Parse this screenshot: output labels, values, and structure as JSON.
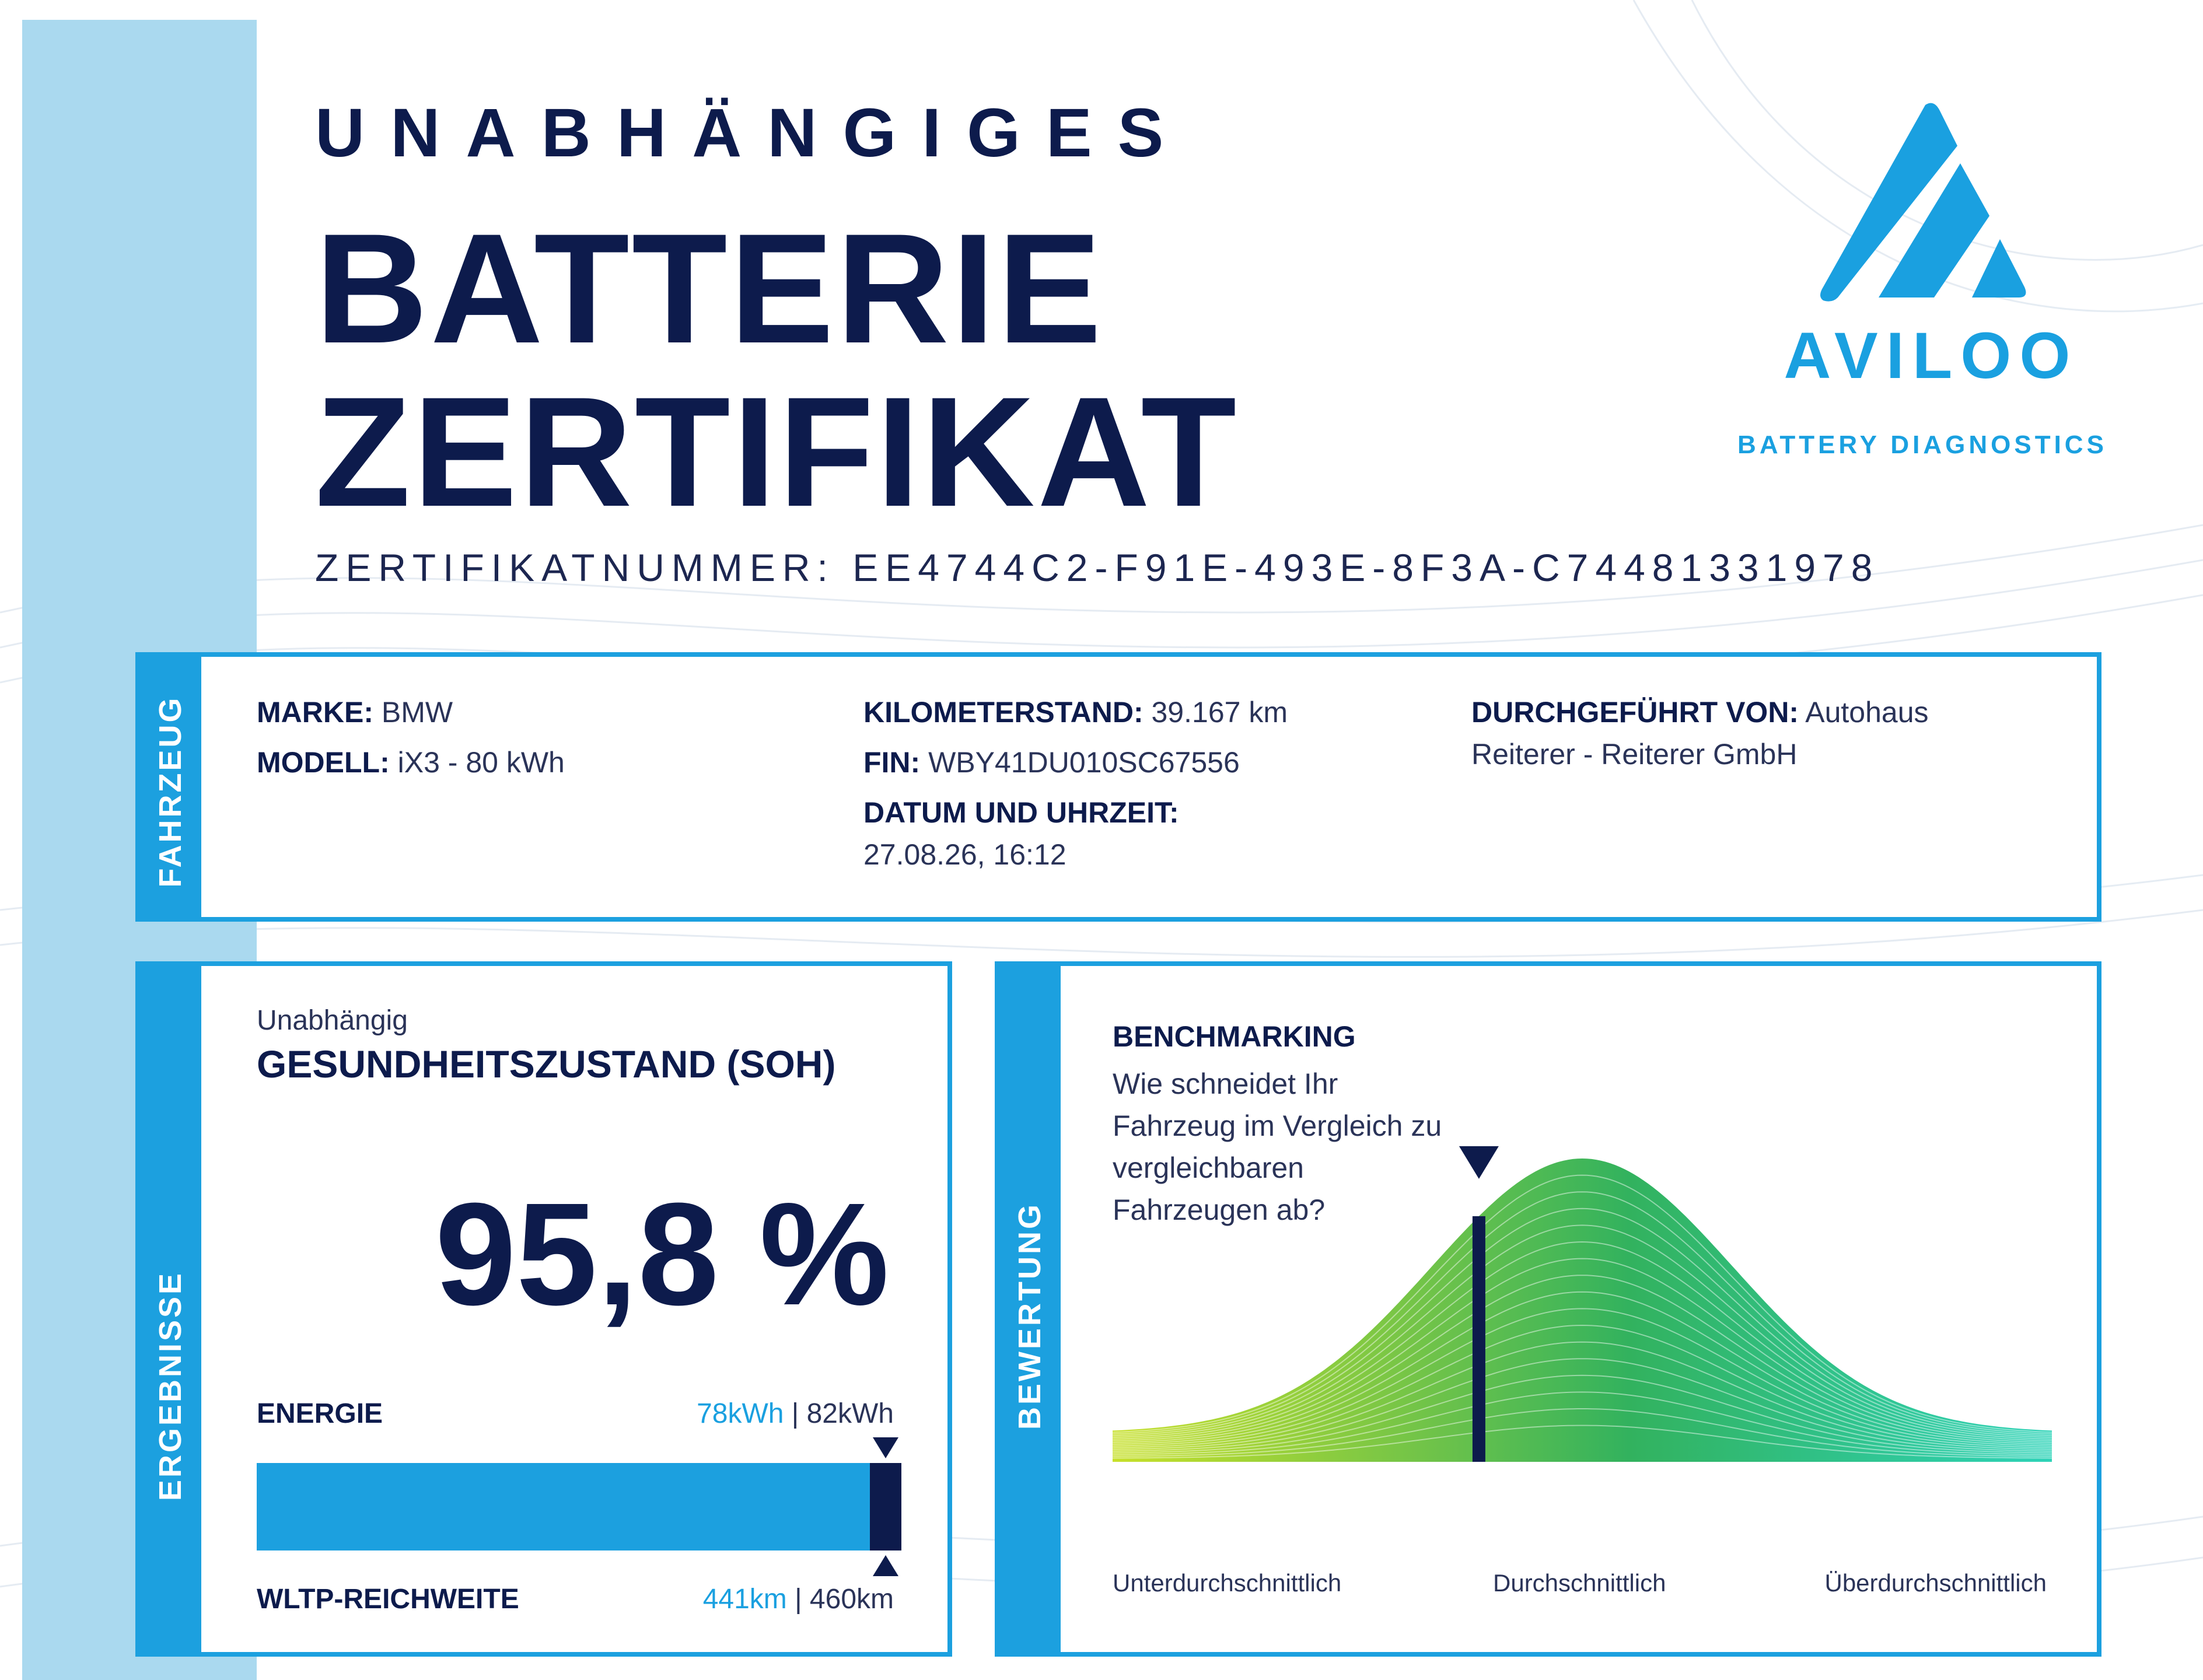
{
  "header": {
    "kicker": "UNABHÄNGIGES",
    "title_line1": "BATTERIE",
    "title_line2": "ZERTIFIKAT",
    "certificate_number": "ZERTIFIKATNUMMER: EE4744C2-F91E-493E-8F3A-C74481331978"
  },
  "logo": {
    "brand": "AVILOO",
    "tagline": "BATTERY DIAGNOSTICS",
    "color": "#1aa0e0"
  },
  "vehicle": {
    "tab_label": "FAHRZEUG",
    "make_label": "MARKE:",
    "make_value": "BMW",
    "model_label": "MODELL:",
    "model_value": "iX3 - 80 kWh",
    "mileage_label": "KILOMETERSTAND:",
    "mileage_value": "39.167 km",
    "vin_label": "FIN:",
    "vin_value": "WBY41DU010SC67556",
    "date_label": "DATUM UND UHRZEIT:",
    "date_value": "27.08.26, 16:12",
    "performed_by_label": "DURCHGEFÜHRT VON:",
    "performed_by_value_line1": "Autohaus",
    "performed_by_value_line2": "Reiterer - Reiterer GmbH"
  },
  "results": {
    "tab_label": "ERGEBNISSE",
    "pre_label": "Unabhängig",
    "soh_label": "GESUNDHEITSZUSTAND (SOH)",
    "soh_value": "95,8 %",
    "energy_label": "ENERGIE",
    "energy_current": "78kWh",
    "energy_separator": " | ",
    "energy_nominal": "82kWh",
    "range_label": "WLTP-REICHWEITE",
    "range_current": "441km",
    "range_separator": " | ",
    "range_nominal": "460km",
    "bar_fill_fraction": 0.951
  },
  "rating": {
    "tab_label": "BEWERTUNG",
    "bench_title": "BENCHMARKING",
    "bench_line1": "Wie schneidet Ihr",
    "bench_line2": "Fahrzeug im Vergleich zu",
    "bench_line3": "vergleichbaren",
    "bench_line4": "Fahrzeugen ab?",
    "axis_low": "Unterdurchschnittlich",
    "axis_mid": "Durchschnittlich",
    "axis_high": "Überdurchschnittlich",
    "marker_position_fraction": 0.39
  },
  "colors": {
    "navy": "#0d1b4c",
    "accent_blue": "#1ca0df",
    "stripe": "#aad9ef"
  }
}
